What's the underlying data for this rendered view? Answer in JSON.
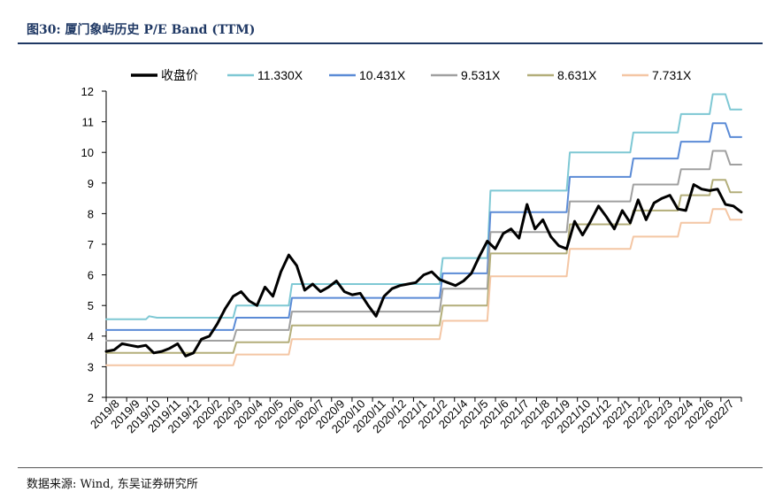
{
  "title": "图30:  厦门象屿历史 P/E Band (TTM)",
  "source": "数据来源:  Wind,  东吴证券研究所",
  "chart_data": {
    "type": "line",
    "ylim": [
      2,
      12
    ],
    "yticks": [
      2,
      3,
      4,
      5,
      6,
      7,
      8,
      9,
      10,
      11,
      12
    ],
    "grid": false,
    "legend_position": "top",
    "categories": [
      "2019/8",
      "2019/9",
      "2019/10",
      "2019/11",
      "2019/12",
      "2020/2",
      "2020/3",
      "2020/4",
      "2020/5",
      "2020/6",
      "2020/7",
      "2020/9",
      "2020/10",
      "2020/11",
      "2020/12",
      "2021/1",
      "2021/2",
      "2021/4",
      "2021/5",
      "2021/6",
      "2021/7",
      "2021/8",
      "2021/9",
      "2021/10",
      "2021/12",
      "2022/1",
      "2022/2",
      "2022/3",
      "2022/4",
      "2022/6",
      "2022/7"
    ],
    "series": [
      {
        "name": "收盘价",
        "color": "#000000",
        "width": 3,
        "points": [
          [
            0,
            3.5
          ],
          [
            0.5,
            3.55
          ],
          [
            1,
            3.75
          ],
          [
            1.5,
            3.7
          ],
          [
            2,
            3.65
          ],
          [
            2.5,
            3.7
          ],
          [
            3,
            3.45
          ],
          [
            3.5,
            3.5
          ],
          [
            4,
            3.6
          ],
          [
            4.5,
            3.75
          ],
          [
            5,
            3.35
          ],
          [
            5.5,
            3.45
          ],
          [
            6,
            3.9
          ],
          [
            6.5,
            4.0
          ],
          [
            7,
            4.4
          ],
          [
            7.5,
            4.9
          ],
          [
            8,
            5.3
          ],
          [
            8.5,
            5.45
          ],
          [
            9,
            5.15
          ],
          [
            9.5,
            5.0
          ],
          [
            10,
            5.6
          ],
          [
            10.5,
            5.3
          ],
          [
            11,
            6.1
          ],
          [
            11.5,
            6.65
          ],
          [
            12,
            6.3
          ],
          [
            12.5,
            5.5
          ],
          [
            13,
            5.7
          ],
          [
            13.5,
            5.45
          ],
          [
            14,
            5.6
          ],
          [
            14.5,
            5.8
          ],
          [
            15,
            5.45
          ],
          [
            15.5,
            5.35
          ],
          [
            16,
            5.4
          ],
          [
            16.5,
            5.0
          ],
          [
            17,
            4.65
          ],
          [
            17.5,
            5.3
          ],
          [
            18,
            5.55
          ],
          [
            18.5,
            5.65
          ],
          [
            19,
            5.7
          ],
          [
            19.5,
            5.75
          ],
          [
            20,
            6.0
          ],
          [
            20.5,
            6.1
          ],
          [
            21,
            5.85
          ],
          [
            21.5,
            5.75
          ],
          [
            22,
            5.65
          ],
          [
            22.5,
            5.8
          ],
          [
            23,
            6.05
          ],
          [
            23.5,
            6.6
          ],
          [
            24,
            7.1
          ],
          [
            24.5,
            6.85
          ],
          [
            25,
            7.35
          ],
          [
            25.5,
            7.5
          ],
          [
            26,
            7.2
          ],
          [
            26.5,
            8.3
          ],
          [
            27,
            7.5
          ],
          [
            27.5,
            7.8
          ],
          [
            28,
            7.25
          ],
          [
            28.5,
            6.95
          ],
          [
            29,
            6.85
          ],
          [
            29.5,
            7.75
          ],
          [
            30,
            7.3
          ],
          [
            30.5,
            7.75
          ],
          [
            31,
            8.25
          ],
          [
            31.5,
            7.9
          ],
          [
            32,
            7.5
          ],
          [
            32.5,
            8.1
          ],
          [
            33,
            7.7
          ],
          [
            33.5,
            8.45
          ],
          [
            34,
            7.8
          ],
          [
            34.5,
            8.35
          ],
          [
            35,
            8.5
          ],
          [
            35.5,
            8.6
          ],
          [
            36,
            8.15
          ],
          [
            36.5,
            8.1
          ],
          [
            37,
            8.95
          ],
          [
            37.5,
            8.8
          ],
          [
            38,
            8.75
          ],
          [
            38.5,
            8.8
          ],
          [
            39,
            8.3
          ],
          [
            39.5,
            8.25
          ],
          [
            40,
            8.05
          ]
        ]
      },
      {
        "name": "11.330X",
        "color": "#7ec8d4",
        "width": 2,
        "points": [
          [
            0,
            4.55
          ],
          [
            2.5,
            4.55
          ],
          [
            2.7,
            4.65
          ],
          [
            3.2,
            4.6
          ],
          [
            8,
            4.6
          ],
          [
            8.2,
            5.0
          ],
          [
            11.5,
            5.0
          ],
          [
            11.7,
            5.7
          ],
          [
            21,
            5.7
          ],
          [
            21.2,
            6.55
          ],
          [
            24,
            6.55
          ],
          [
            24.2,
            8.75
          ],
          [
            29,
            8.75
          ],
          [
            29.2,
            10.0
          ],
          [
            33,
            10.0
          ],
          [
            33.2,
            10.65
          ],
          [
            36,
            10.65
          ],
          [
            36.2,
            11.25
          ],
          [
            38,
            11.25
          ],
          [
            38.2,
            11.9
          ],
          [
            39,
            11.9
          ],
          [
            39.3,
            11.4
          ],
          [
            40,
            11.4
          ]
        ]
      },
      {
        "name": "10.431X",
        "color": "#5b8bd6",
        "width": 2,
        "points": [
          [
            0,
            4.2
          ],
          [
            8,
            4.2
          ],
          [
            8.2,
            4.6
          ],
          [
            11.5,
            4.6
          ],
          [
            11.7,
            5.25
          ],
          [
            21,
            5.25
          ],
          [
            21.2,
            6.05
          ],
          [
            24,
            6.05
          ],
          [
            24.2,
            8.05
          ],
          [
            29,
            8.05
          ],
          [
            29.2,
            9.2
          ],
          [
            33,
            9.2
          ],
          [
            33.2,
            9.8
          ],
          [
            36,
            9.8
          ],
          [
            36.2,
            10.35
          ],
          [
            38,
            10.35
          ],
          [
            38.2,
            10.95
          ],
          [
            39,
            10.95
          ],
          [
            39.3,
            10.5
          ],
          [
            40,
            10.5
          ]
        ]
      },
      {
        "name": "9.531X",
        "color": "#a0a0a0",
        "width": 2,
        "points": [
          [
            0,
            3.85
          ],
          [
            8,
            3.85
          ],
          [
            8.2,
            4.2
          ],
          [
            11.5,
            4.2
          ],
          [
            11.7,
            4.8
          ],
          [
            21,
            4.8
          ],
          [
            21.2,
            5.55
          ],
          [
            24,
            5.55
          ],
          [
            24.2,
            7.4
          ],
          [
            29,
            7.4
          ],
          [
            29.2,
            8.4
          ],
          [
            33,
            8.4
          ],
          [
            33.2,
            8.95
          ],
          [
            36,
            8.95
          ],
          [
            36.2,
            9.45
          ],
          [
            38,
            9.45
          ],
          [
            38.2,
            10.05
          ],
          [
            39,
            10.05
          ],
          [
            39.3,
            9.6
          ],
          [
            40,
            9.6
          ]
        ]
      },
      {
        "name": "8.631X",
        "color": "#b3ae7a",
        "width": 2,
        "points": [
          [
            0,
            3.45
          ],
          [
            8,
            3.45
          ],
          [
            8.2,
            3.8
          ],
          [
            11.5,
            3.8
          ],
          [
            11.7,
            4.35
          ],
          [
            21,
            4.35
          ],
          [
            21.2,
            5.0
          ],
          [
            24,
            5.0
          ],
          [
            24.2,
            6.7
          ],
          [
            29,
            6.7
          ],
          [
            29.2,
            7.65
          ],
          [
            33,
            7.65
          ],
          [
            33.2,
            8.1
          ],
          [
            36,
            8.1
          ],
          [
            36.2,
            8.6
          ],
          [
            38,
            8.6
          ],
          [
            38.2,
            9.1
          ],
          [
            39,
            9.1
          ],
          [
            39.3,
            8.7
          ],
          [
            40,
            8.7
          ]
        ]
      },
      {
        "name": "7.731X",
        "color": "#f4c6a4",
        "width": 2,
        "points": [
          [
            0,
            3.05
          ],
          [
            8,
            3.05
          ],
          [
            8.2,
            3.4
          ],
          [
            11.5,
            3.4
          ],
          [
            11.7,
            3.9
          ],
          [
            21,
            3.9
          ],
          [
            21.2,
            4.5
          ],
          [
            24,
            4.5
          ],
          [
            24.2,
            5.95
          ],
          [
            29,
            5.95
          ],
          [
            29.2,
            6.85
          ],
          [
            33,
            6.85
          ],
          [
            33.2,
            7.25
          ],
          [
            36,
            7.25
          ],
          [
            36.2,
            7.7
          ],
          [
            38,
            7.7
          ],
          [
            38.2,
            8.15
          ],
          [
            39,
            8.15
          ],
          [
            39.3,
            7.8
          ],
          [
            40,
            7.8
          ]
        ]
      }
    ]
  }
}
